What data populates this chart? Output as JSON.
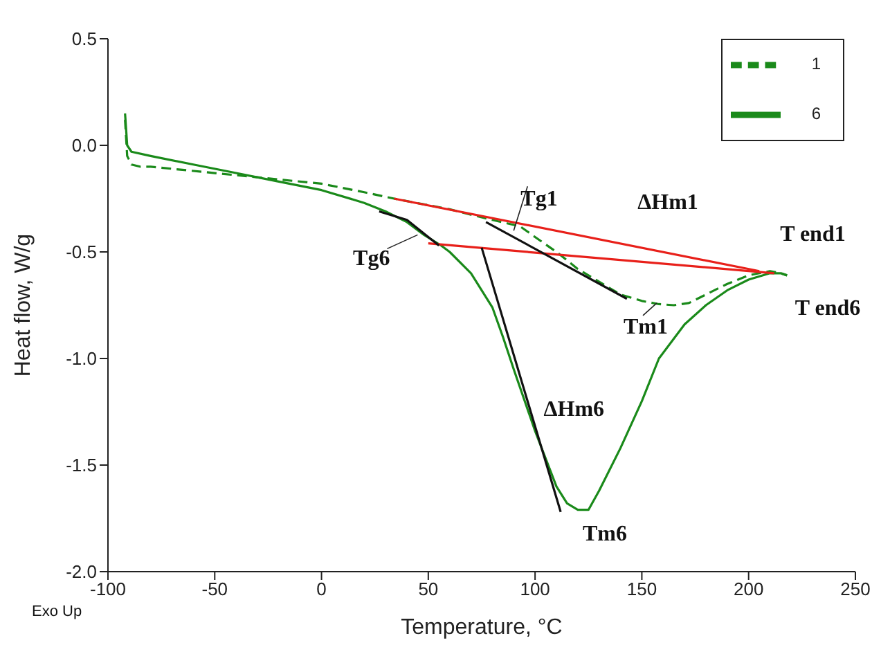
{
  "chart_data": {
    "type": "line",
    "xlabel": "Temperature, °C",
    "ylabel": "Heat flow, W/g",
    "xlim": [
      -100,
      250
    ],
    "xticks": [
      -100,
      -50,
      0,
      50,
      100,
      150,
      200,
      250
    ],
    "ylim": [
      -2.0,
      0.5
    ],
    "yticks": [
      {
        "value": -2.0,
        "label": "-2.0"
      },
      {
        "value": -1.5,
        "label": "-1.5"
      },
      {
        "value": -1.0,
        "label": "-1.0"
      },
      {
        "value": -0.5,
        "label": "-0.5"
      },
      {
        "value": 0.0,
        "label": "0.0"
      },
      {
        "value": 0.5,
        "label": "0.5"
      }
    ],
    "grid": false,
    "legend": "top right",
    "marker": "none",
    "series": [
      {
        "name": "1",
        "color": "#1a8a1a",
        "line_style": "dashed",
        "x": [
          -92,
          -91,
          -89,
          -85,
          -80,
          -50,
          -20,
          0,
          20,
          34,
          60,
          80,
          93,
          100,
          110,
          120,
          130,
          140,
          150,
          158,
          165,
          172,
          180,
          190,
          200,
          210,
          215,
          218
        ],
        "values": [
          0.12,
          -0.05,
          -0.09,
          -0.1,
          -0.1,
          -0.13,
          -0.16,
          -0.18,
          -0.22,
          -0.25,
          -0.3,
          -0.35,
          -0.38,
          -0.43,
          -0.5,
          -0.58,
          -0.64,
          -0.7,
          -0.73,
          -0.745,
          -0.75,
          -0.74,
          -0.7,
          -0.65,
          -0.61,
          -0.59,
          -0.6,
          -0.61
        ]
      },
      {
        "name": "6",
        "color": "#1a8a1a",
        "line_style": "solid",
        "x": [
          -92,
          -91,
          -89,
          -80,
          -60,
          -40,
          -20,
          0,
          20,
          30,
          40,
          48,
          56,
          60,
          70,
          80,
          85,
          90,
          100,
          110,
          115,
          120,
          125,
          130,
          140,
          150,
          158,
          170,
          180,
          190,
          200,
          210,
          215,
          218
        ],
        "values": [
          0.15,
          0.0,
          -0.03,
          -0.05,
          -0.09,
          -0.13,
          -0.17,
          -0.21,
          -0.27,
          -0.31,
          -0.36,
          -0.42,
          -0.47,
          -0.5,
          -0.6,
          -0.76,
          -0.9,
          -1.05,
          -1.34,
          -1.6,
          -1.68,
          -1.71,
          -1.71,
          -1.62,
          -1.42,
          -1.2,
          -1.0,
          -0.84,
          -0.75,
          -0.68,
          -0.63,
          -0.6,
          -0.6,
          -0.61
        ]
      },
      {
        "color": "#e8201a",
        "line_style": "solid",
        "x": [
          34,
          205
        ],
        "values": [
          -0.25,
          -0.59
        ]
      },
      {
        "color": "#e8201a",
        "line_style": "solid",
        "x": [
          50,
          212
        ],
        "values": [
          -0.46,
          -0.6
        ]
      },
      {
        "color": "#111111",
        "line_style": "solid",
        "x": [
          75,
          112
        ],
        "values": [
          -0.48,
          -1.72
        ]
      },
      {
        "color": "#111111",
        "line_style": "solid",
        "x": [
          77,
          143
        ],
        "values": [
          -0.36,
          -0.72
        ]
      },
      {
        "color": "#111111",
        "line_style": "solid",
        "x": [
          27,
          40,
          50,
          55
        ],
        "values": [
          -0.31,
          -0.35,
          -0.43,
          -0.47
        ]
      }
    ],
    "annotations": [
      {
        "text": "Tg1",
        "x": 90,
        "y": -0.4
      },
      "ΔHm1",
      {
        "text": "T end1",
        "x": 205,
        "y": -0.59
      },
      {
        "text": "T end6",
        "x": 212,
        "y": -0.6
      },
      {
        "text": "Tm1",
        "x": 157,
        "y": -0.74
      },
      {
        "text": "Tg6",
        "x": 45,
        "y": -0.42
      },
      "ΔHm6",
      {
        "text": "Tm6",
        "x": 121,
        "y": -1.71
      },
      "Exo Up"
    ]
  }
}
